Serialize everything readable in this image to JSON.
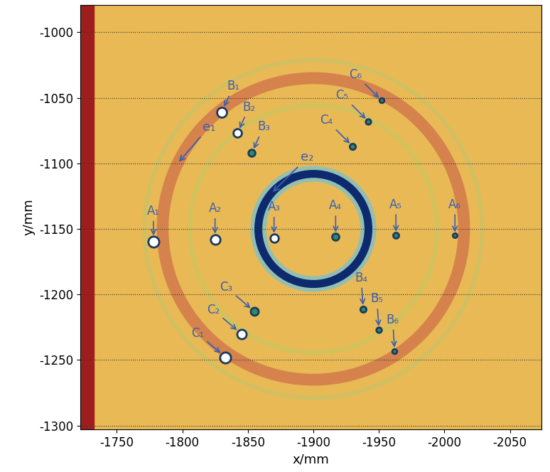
{
  "chart_data": {
    "type": "scatter",
    "x_label": "x/mm",
    "y_label": "y/mm",
    "xlim": [
      -1722,
      -2074
    ],
    "ylim": [
      -1303,
      -979
    ],
    "xticks": [
      -1750,
      -1800,
      -1850,
      -1900,
      -1950,
      -2000,
      -2050
    ],
    "yticks": [
      -1000,
      -1050,
      -1100,
      -1150,
      -1200,
      -1250,
      -1300
    ],
    "grid": true,
    "points": [
      {
        "label": "A₁",
        "x": -1778,
        "y": -1160
      },
      {
        "label": "A₂",
        "x": -1825,
        "y": -1158
      },
      {
        "label": "A₃",
        "x": -1870,
        "y": -1157
      },
      {
        "label": "A₄",
        "x": -1917,
        "y": -1156
      },
      {
        "label": "A₅",
        "x": -1963,
        "y": -1155
      },
      {
        "label": "A₆",
        "x": -2008,
        "y": -1155
      },
      {
        "label": "B₁",
        "x": -1830,
        "y": -1061
      },
      {
        "label": "B₂",
        "x": -1842,
        "y": -1077
      },
      {
        "label": "B₃",
        "x": -1853,
        "y": -1092
      },
      {
        "label": "B₄",
        "x": -1938,
        "y": -1211
      },
      {
        "label": "B₅",
        "x": -1950,
        "y": -1227
      },
      {
        "label": "B₆",
        "x": -1962,
        "y": -1243
      },
      {
        "label": "C₁",
        "x": -1833,
        "y": -1248
      },
      {
        "label": "C₂",
        "x": -1845,
        "y": -1230
      },
      {
        "label": "C₃",
        "x": -1855,
        "y": -1213
      },
      {
        "label": "C₄",
        "x": -1930,
        "y": -1087
      },
      {
        "label": "C₅",
        "x": -1942,
        "y": -1068
      },
      {
        "label": "C₆",
        "x": -1952,
        "y": -1052
      }
    ],
    "rings": [
      {
        "label": "e₁",
        "x": -1900,
        "y": -1150,
        "radius": 115
      },
      {
        "label": "e₂",
        "x": -1900,
        "y": -1150,
        "radius": 42
      }
    ]
  }
}
